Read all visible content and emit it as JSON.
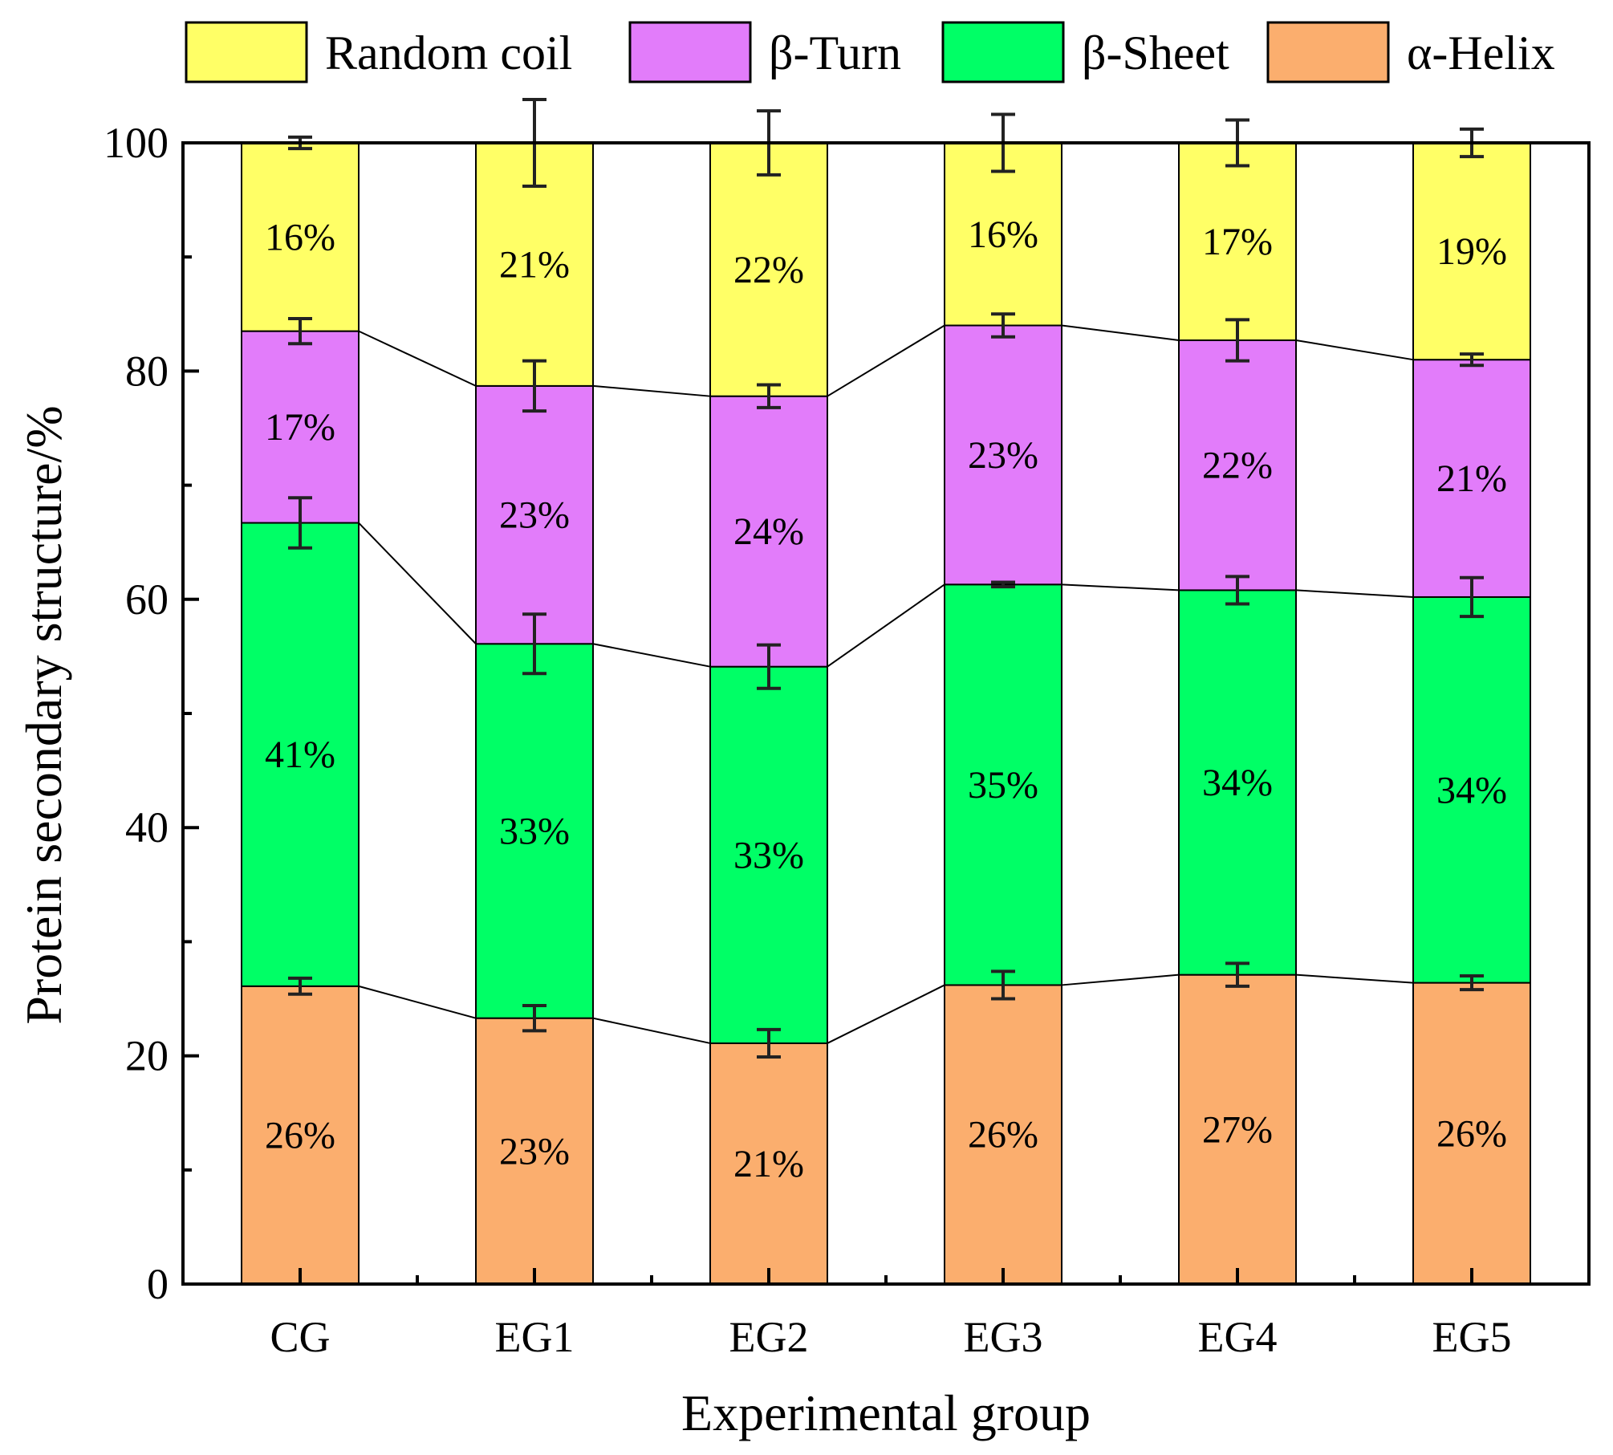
{
  "chart_data": {
    "type": "bar",
    "stacked": true,
    "title": "",
    "xlabel": "Experimental group",
    "ylabel": "Protein secondary structure/%",
    "ylim": [
      0,
      100
    ],
    "yticks": [
      0,
      20,
      40,
      60,
      80,
      100
    ],
    "categories": [
      "CG",
      "EG1",
      "EG2",
      "EG3",
      "EG4",
      "EG5"
    ],
    "legend_position": "top",
    "series": [
      {
        "name": "α-Helix",
        "color": "#FBAE6E",
        "values": [
          26.1,
          23.3,
          21.1,
          26.2,
          27.1,
          26.4
        ],
        "errors": [
          0.7,
          1.1,
          1.2,
          1.2,
          1.0,
          0.6
        ],
        "labels": [
          "26%",
          "23%",
          "21%",
          "26%",
          "27%",
          "26%"
        ]
      },
      {
        "name": "β-Sheet",
        "color": "#00FF66",
        "values": [
          40.6,
          32.8,
          33.0,
          35.1,
          33.7,
          33.8
        ],
        "errors": [
          2.2,
          2.6,
          1.9,
          0.2,
          1.2,
          1.7
        ],
        "labels": [
          "41%",
          "33%",
          "33%",
          "35%",
          "34%",
          "34%"
        ]
      },
      {
        "name": "β-Turn",
        "color": "#E27CFA",
        "values": [
          16.8,
          22.6,
          23.7,
          22.7,
          21.9,
          20.8
        ],
        "errors": [
          1.1,
          2.2,
          1.0,
          1.0,
          1.8,
          0.5
        ],
        "labels": [
          "17%",
          "23%",
          "24%",
          "23%",
          "22%",
          "21%"
        ]
      },
      {
        "name": "Random coil",
        "color": "#FFFF66",
        "values": [
          16.5,
          21.3,
          22.2,
          16.0,
          17.3,
          19.0
        ],
        "errors": [
          0.5,
          3.8,
          2.8,
          2.5,
          2.0,
          1.2
        ],
        "labels": [
          "16%",
          "21%",
          "22%",
          "16%",
          "17%",
          "19%"
        ]
      }
    ],
    "legend_order": [
      "Random coil",
      "β-Turn",
      "β-Sheet",
      "α-Helix"
    ]
  }
}
